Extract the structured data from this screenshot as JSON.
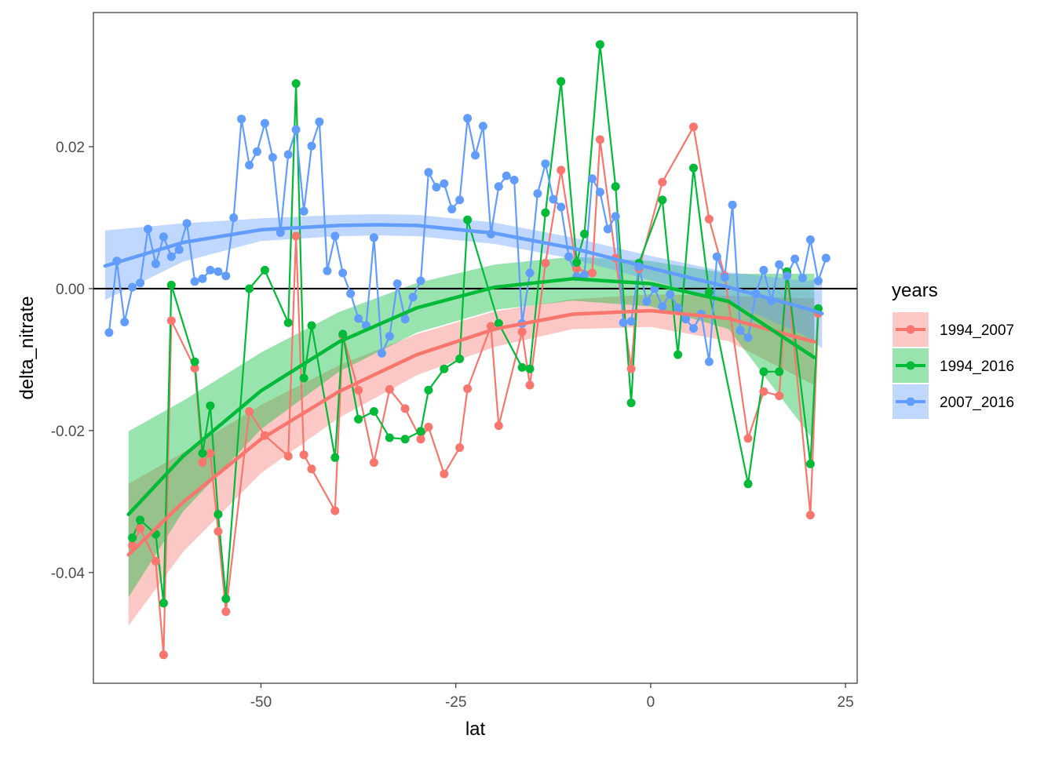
{
  "chart_data": {
    "type": "line",
    "title": "",
    "xlabel": "lat",
    "ylabel": "delta_nitrate",
    "xlim": [
      -71.5,
      26.5
    ],
    "ylim": [
      -0.0556,
      0.0389
    ],
    "xticks": [
      -50,
      -25,
      0,
      25
    ],
    "xtick_labels": [
      "-50",
      "-25",
      "0",
      "25"
    ],
    "yticks": [
      -0.04,
      -0.02,
      0.0,
      0.02
    ],
    "ytick_labels": [
      "-0.04",
      "-0.02",
      "0.00",
      "0.02"
    ],
    "hline": 0,
    "grid": false,
    "legend": {
      "title": "years",
      "position": "right"
    },
    "series": [
      {
        "name": "1994_2007",
        "color": "#F8766D",
        "x": [
          -66.5,
          -65.5,
          -63.5,
          -62.5,
          -61.5,
          -58.5,
          -57.5,
          -56.5,
          -55.5,
          -54.5,
          -51.5,
          -49.5,
          -46.5,
          -45.5,
          -44.5,
          -43.5,
          -40.5,
          -39.5,
          -37.5,
          -35.5,
          -33.5,
          -31.5,
          -29.5,
          -28.5,
          -26.5,
          -24.5,
          -23.5,
          -20.5,
          -19.5,
          -16.5,
          -15.5,
          -13.5,
          -11.5,
          -9.5,
          -7.5,
          -6.5,
          -4.5,
          -2.5,
          -1.5,
          1.5,
          5.5,
          7.5,
          9.5,
          12.5,
          14.5,
          16.5,
          17.5,
          20.5,
          21.5
        ],
        "y": [
          -0.0362,
          -0.0338,
          -0.0384,
          -0.0516,
          -0.0045,
          -0.0112,
          -0.0245,
          -0.0232,
          -0.0342,
          -0.0455,
          -0.0173,
          -0.0207,
          -0.0236,
          0.0074,
          -0.0234,
          -0.0254,
          -0.0313,
          -0.0066,
          -0.0143,
          -0.0245,
          -0.0142,
          -0.0169,
          -0.0212,
          -0.0195,
          -0.0261,
          -0.0224,
          -0.0141,
          -0.0053,
          -0.0193,
          -0.0061,
          -0.0136,
          0.0036,
          0.0167,
          0.0028,
          0.0022,
          0.021,
          0.0043,
          -0.0113,
          0.0028,
          0.015,
          0.0228,
          0.0098,
          0.0018,
          -0.0211,
          -0.0145,
          -0.0151,
          0.0022,
          -0.0319,
          -0.0035
        ],
        "trend_x": [
          -67,
          -60,
          -50,
          -40,
          -30,
          -20,
          -10,
          0,
          10,
          21
        ],
        "trend_y": [
          -0.0375,
          -0.0301,
          -0.0212,
          -0.0145,
          -0.0093,
          -0.0057,
          -0.0036,
          -0.0031,
          -0.0042,
          -0.0075
        ],
        "ci_lower": [
          -0.0475,
          -0.0371,
          -0.026,
          -0.0182,
          -0.0122,
          -0.0082,
          -0.0057,
          -0.0054,
          -0.0074,
          -0.0136
        ],
        "ci_upper": [
          -0.0275,
          -0.0231,
          -0.0164,
          -0.0108,
          -0.0064,
          -0.0032,
          -0.0015,
          -0.0008,
          -0.001,
          -0.0014
        ]
      },
      {
        "name": "1994_2016",
        "color": "#00BA38",
        "x": [
          -66.5,
          -65.5,
          -63.5,
          -62.5,
          -61.5,
          -58.5,
          -57.5,
          -56.5,
          -55.5,
          -54.5,
          -51.5,
          -49.5,
          -46.5,
          -45.5,
          -44.5,
          -43.5,
          -40.5,
          -39.5,
          -37.5,
          -35.5,
          -33.5,
          -31.5,
          -29.5,
          -28.5,
          -26.5,
          -24.5,
          -23.5,
          -19.5,
          -16.5,
          -15.5,
          -13.5,
          -11.5,
          -9.5,
          -8.5,
          -6.5,
          -4.5,
          -2.5,
          -1.5,
          1.5,
          3.5,
          5.5,
          7.5,
          12.5,
          14.5,
          16.5,
          17.5,
          20.5,
          21.5
        ],
        "y": [
          -0.0351,
          -0.0326,
          -0.0346,
          -0.0443,
          0.0005,
          -0.0103,
          -0.0232,
          -0.0165,
          -0.0318,
          -0.0437,
          0.0,
          0.0026,
          -0.0048,
          0.0289,
          -0.0126,
          -0.0052,
          -0.0238,
          -0.0064,
          -0.0184,
          -0.0173,
          -0.021,
          -0.0212,
          -0.0201,
          -0.0143,
          -0.0113,
          -0.0099,
          0.0097,
          -0.0049,
          -0.0111,
          -0.0113,
          0.0107,
          0.0292,
          0.0037,
          0.0077,
          0.0344,
          0.0144,
          -0.0161,
          0.0036,
          0.0125,
          -0.0093,
          0.017,
          -0.0005,
          -0.0275,
          -0.0117,
          -0.0117,
          0.0024,
          -0.0247,
          -0.0028
        ],
        "trend_x": [
          -67,
          -60,
          -50,
          -40,
          -30,
          -20,
          -10,
          0,
          10,
          21
        ],
        "trend_y": [
          -0.0318,
          -0.0236,
          -0.0144,
          -0.0075,
          -0.0027,
          0.0002,
          0.0014,
          0.0007,
          -0.0018,
          -0.0097
        ],
        "ci_lower": [
          -0.0435,
          -0.0314,
          -0.0198,
          -0.0117,
          -0.0062,
          -0.003,
          -0.0017,
          -0.0025,
          -0.0057,
          -0.0215
        ],
        "ci_upper": [
          -0.0201,
          -0.0158,
          -0.009,
          -0.0033,
          0.0008,
          0.0034,
          0.0045,
          0.0039,
          0.0021,
          0.0021
        ]
      },
      {
        "name": "2007_2016",
        "color": "#619CFF",
        "x": [
          -69.5,
          -68.5,
          -67.5,
          -66.5,
          -65.5,
          -64.5,
          -63.5,
          -62.5,
          -61.5,
          -60.5,
          -59.5,
          -58.5,
          -57.5,
          -56.5,
          -55.5,
          -54.5,
          -53.5,
          -52.5,
          -51.5,
          -50.5,
          -49.5,
          -48.5,
          -47.5,
          -46.5,
          -45.5,
          -44.5,
          -43.5,
          -42.5,
          -41.5,
          -40.5,
          -39.5,
          -38.5,
          -37.5,
          -36.5,
          -35.5,
          -34.5,
          -33.5,
          -32.5,
          -31.5,
          -30.5,
          -29.5,
          -28.5,
          -27.5,
          -26.5,
          -25.5,
          -24.5,
          -23.5,
          -22.5,
          -21.5,
          -20.5,
          -19.5,
          -18.5,
          -17.5,
          -16.5,
          -15.5,
          -14.5,
          -13.5,
          -12.5,
          -11.5,
          -10.5,
          -9.5,
          -8.5,
          -7.5,
          -6.5,
          -5.5,
          -4.5,
          -3.5,
          -2.5,
          -1.5,
          -0.5,
          0.5,
          1.5,
          2.5,
          3.5,
          4.5,
          5.5,
          6.5,
          7.5,
          8.5,
          9.5,
          10.5,
          11.5,
          12.5,
          13.5,
          14.5,
          15.5,
          16.5,
          17.5,
          18.5,
          19.5,
          20.5,
          21.5,
          22.5
        ],
        "y": [
          -0.0062,
          0.0039,
          -0.0047,
          0.0002,
          0.0008,
          0.0084,
          0.0035,
          0.0073,
          0.0045,
          0.0055,
          0.0092,
          0.001,
          0.0014,
          0.0026,
          0.0024,
          0.0018,
          0.01,
          0.0239,
          0.0174,
          0.0193,
          0.0233,
          0.0185,
          0.0079,
          0.0189,
          0.0224,
          0.0109,
          0.0201,
          0.0235,
          0.0025,
          0.0074,
          0.0022,
          -0.0007,
          -0.0042,
          -0.0052,
          0.0072,
          -0.0091,
          -0.0067,
          0.0007,
          -0.0043,
          -0.0012,
          0.0011,
          0.0164,
          0.0143,
          0.0148,
          0.0112,
          0.0125,
          0.024,
          0.0188,
          0.0229,
          0.0077,
          0.0144,
          0.0159,
          0.0153,
          -0.0049,
          0.0022,
          0.0134,
          0.0176,
          0.0126,
          0.0115,
          0.0045,
          0.0017,
          0.0019,
          0.0155,
          0.0136,
          0.0084,
          0.0102,
          -0.0048,
          -0.0046,
          0.0031,
          -0.0018,
          0.0,
          -0.0025,
          -0.0008,
          -0.0027,
          -0.0043,
          -0.0056,
          -0.0036,
          -0.0103,
          0.0045,
          0.0016,
          0.0118,
          -0.0059,
          -0.0069,
          -0.0007,
          0.0026,
          -0.0017,
          0.0034,
          0.0018,
          0.0042,
          0.0015,
          0.0069,
          0.0011,
          0.0043
        ],
        "trend_x": [
          -70,
          -60,
          -50,
          -40,
          -35,
          -30,
          -20,
          -10,
          0,
          10,
          20,
          22
        ],
        "trend_y": [
          0.0032,
          0.0065,
          0.0083,
          0.0089,
          0.009,
          0.0089,
          0.0078,
          0.0057,
          0.0029,
          0.0002,
          -0.0028,
          -0.0035
        ],
        "ci_lower": [
          -0.0016,
          0.0038,
          0.0067,
          0.0074,
          0.0075,
          0.0074,
          0.0063,
          0.0042,
          0.0012,
          -0.0019,
          -0.0067,
          -0.0084
        ],
        "ci_upper": [
          0.0082,
          0.0092,
          0.0099,
          0.0104,
          0.0105,
          0.0104,
          0.0093,
          0.0072,
          0.0046,
          0.0023,
          0.0011,
          0.0014
        ]
      }
    ]
  }
}
